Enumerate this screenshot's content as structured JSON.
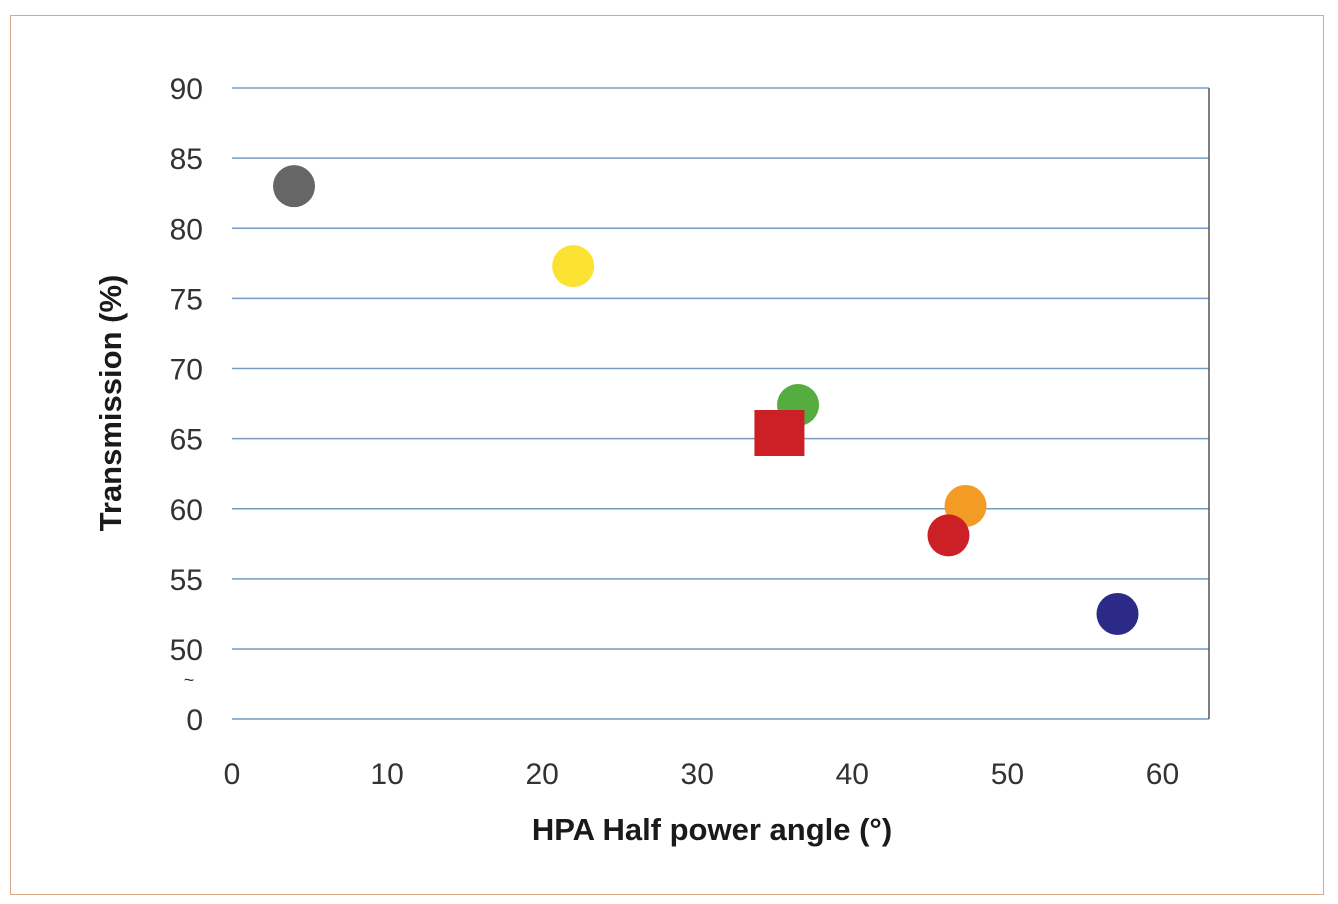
{
  "chart_data": {
    "type": "scatter",
    "xlabel": "HPA Half power angle (°)",
    "ylabel": "Transmission (%)",
    "xlim": [
      0,
      63
    ],
    "x_ticks": [
      "0",
      "10",
      "20",
      "30",
      "40",
      "50",
      "60"
    ],
    "y_ticks": [
      "90",
      "85",
      "80",
      "75",
      "70",
      "65",
      "60",
      "55",
      "50",
      "0"
    ],
    "y_axis_break": "~",
    "y_axis_break_between": [
      0,
      50
    ],
    "grid": "horizontal",
    "legend": "none",
    "points": [
      {
        "x": 4,
        "y": 83,
        "color": "#666666",
        "shape": "circle"
      },
      {
        "x": 22,
        "y": 77.3,
        "color": "#fbe232",
        "shape": "circle"
      },
      {
        "x": 36.5,
        "y": 67.4,
        "color": "#55ad3f",
        "shape": "circle"
      },
      {
        "x": 35.3,
        "y": 65.4,
        "color": "#cc1f26",
        "shape": "square"
      },
      {
        "x": 47.3,
        "y": 60.2,
        "color": "#f39c25",
        "shape": "circle"
      },
      {
        "x": 46.2,
        "y": 58.1,
        "color": "#cc1f26",
        "shape": "circle"
      },
      {
        "x": 57.1,
        "y": 52.5,
        "color": "#2b2a86",
        "shape": "circle"
      }
    ]
  }
}
